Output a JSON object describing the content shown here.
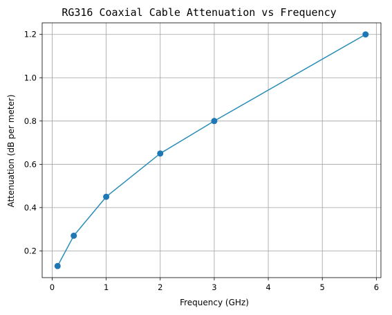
{
  "chart_data": {
    "type": "line",
    "title": "RG316 Coaxial Cable Attenuation vs Frequency",
    "xlabel": "Frequency (GHz)",
    "ylabel": "Attenuation (dB per meter)",
    "x": [
      0.1,
      0.4,
      1,
      2,
      3,
      5.8
    ],
    "series": [
      {
        "values": [
          0.13,
          0.27,
          0.45,
          0.65,
          0.8,
          1.2
        ],
        "color": "#1f77b4",
        "marker": "circle"
      }
    ],
    "xlim": [
      -0.185,
      6.085
    ],
    "ylim": [
      0.0765,
      1.2535
    ],
    "xticks": [
      0,
      1,
      2,
      3,
      4,
      5,
      6
    ],
    "yticks": [
      0.2,
      0.4,
      0.6,
      0.8,
      1.0,
      1.2
    ],
    "xtick_labels": [
      "0",
      "1",
      "2",
      "3",
      "4",
      "5",
      "6"
    ],
    "ytick_labels": [
      "0.2",
      "0.4",
      "0.6",
      "0.8",
      "1.0",
      "1.2"
    ],
    "grid": true,
    "grid_color": "#a0a0a0",
    "line_color": "#2a8cb8"
  }
}
